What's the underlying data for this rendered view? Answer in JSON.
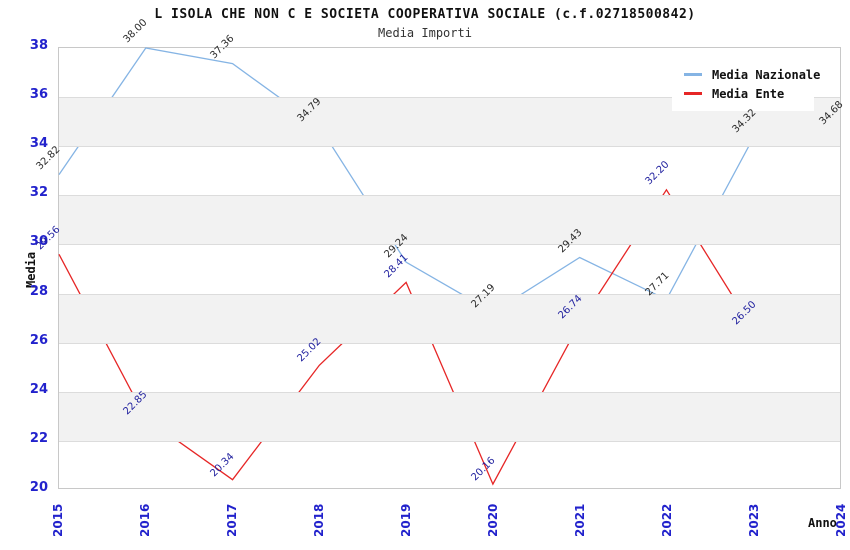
{
  "title": "L ISOLA CHE NON C E SOCIETA COOPERATIVA SOCIALE (c.f.02718500842)",
  "subtitle": "Media Importi",
  "axes": {
    "x_label": "Anno",
    "y_label": "Media",
    "y_ticks": [
      38,
      36,
      34,
      32,
      30,
      28,
      26,
      24,
      22,
      20
    ],
    "x_ticks": [
      "2015",
      "2016",
      "2017",
      "2018",
      "2019",
      "2020",
      "2021",
      "2022",
      "2023",
      "2024"
    ]
  },
  "legend": {
    "items": [
      {
        "label": "Media Nazionale",
        "color": "#85b4e4"
      },
      {
        "label": "Media Ente",
        "color": "#e62626"
      }
    ]
  },
  "colors": {
    "tick_label": "#2222cc",
    "band_gray": "#f2f2f2",
    "gridline": "#dcdcdc",
    "plot_border": "#c8c8c8",
    "nazionale_line": "#85b4e4",
    "ente_line": "#e62626",
    "nazionale_value_label": "#2b2b2b",
    "ente_value_label": "#1f1f9e"
  },
  "chart_data": {
    "type": "line",
    "title": "L ISOLA CHE NON C E SOCIETA COOPERATIVA SOCIALE (c.f.02718500842)",
    "subtitle": "Media Importi",
    "xlabel": "Anno",
    "ylabel": "Media",
    "x": [
      2015,
      2016,
      2017,
      2018,
      2019,
      2020,
      2021,
      2022,
      2023,
      2024
    ],
    "ylim": [
      20,
      38
    ],
    "grid": true,
    "legend_position": "top-right",
    "gray_bands": [
      [
        34,
        36
      ],
      [
        30,
        32
      ],
      [
        26,
        28
      ],
      [
        22,
        24
      ]
    ],
    "y_gridlines": [
      36,
      34,
      32,
      30,
      28,
      26,
      24,
      22
    ],
    "series": [
      {
        "name": "Media Nazionale",
        "color": "#85b4e4",
        "label_color": "#2b2b2b",
        "values": [
          32.82,
          38.0,
          37.36,
          34.79,
          29.24,
          27.19,
          29.43,
          27.71,
          34.32,
          34.68
        ]
      },
      {
        "name": "Media Ente",
        "color": "#e62626",
        "label_color": "#1f1f9e",
        "values": [
          29.56,
          22.85,
          20.34,
          25.02,
          28.41,
          20.16,
          26.74,
          32.2,
          26.5
        ]
      }
    ]
  }
}
